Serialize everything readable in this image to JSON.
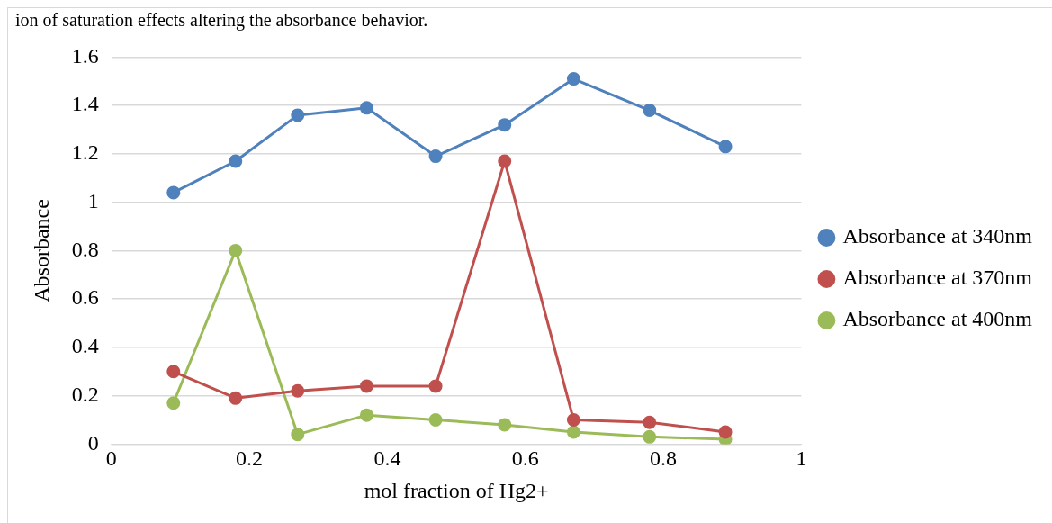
{
  "chart_data": {
    "type": "line",
    "xlabel": "mol fraction of Hg2+",
    "ylabel": "Absorbance",
    "annotations": [
      "ion of saturation effects altering the absorbance behavior."
    ],
    "x": [
      0.09,
      0.18,
      0.27,
      0.37,
      0.47,
      0.57,
      0.67,
      0.78,
      0.89
    ],
    "series": [
      {
        "name": "Absorbance at 340nm",
        "color": "#4f81bd",
        "values": [
          1.04,
          1.17,
          1.36,
          1.39,
          1.19,
          1.32,
          1.51,
          1.38,
          1.23
        ]
      },
      {
        "name": "Absorbance at 370nm",
        "color": "#c0504d",
        "values": [
          0.3,
          0.19,
          0.22,
          0.24,
          0.24,
          1.17,
          0.1,
          0.09,
          0.05
        ]
      },
      {
        "name": "Absorbance at 400nm",
        "color": "#9bbb59",
        "values": [
          0.17,
          0.8,
          0.04,
          0.12,
          0.1,
          0.08,
          0.05,
          0.03,
          0.02
        ]
      }
    ],
    "xlim": [
      0,
      1
    ],
    "xticks": [
      0,
      0.2,
      0.4,
      0.6,
      0.8,
      1
    ],
    "ylim": [
      0,
      1.6
    ],
    "yticks": [
      0,
      0.2,
      0.4,
      0.6,
      0.8,
      1,
      1.2,
      1.4,
      1.6
    ],
    "grid": "y",
    "legend": "right",
    "marker": "circle",
    "line_style": "solid"
  }
}
